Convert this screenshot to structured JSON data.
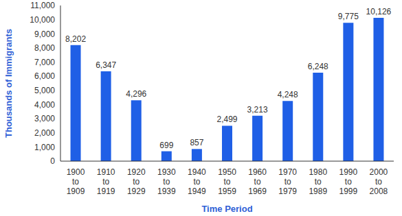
{
  "chart_data": {
    "type": "bar",
    "x_label": "Time Period",
    "y_label": "Thousands of Immigrants",
    "categories": [
      "1900 to 1909",
      "1910 to 1919",
      "1920 to 1929",
      "1930 to 1939",
      "1940 to 1949",
      "1950 to 1959",
      "1960 to 1969",
      "1970 to 1979",
      "1980 to 1989",
      "1990 to 1999",
      "2000 to 2008"
    ],
    "values": [
      8202,
      6347,
      4296,
      699,
      857,
      2499,
      3213,
      4248,
      6248,
      9775,
      10126
    ],
    "value_labels": [
      "8,202",
      "6,347",
      "4,296",
      "699",
      "857",
      "2,499",
      "3,213",
      "4,248",
      "6,248",
      "9,775",
      "10,126"
    ],
    "color": "#1f5fe6",
    "ylim": [
      0,
      11000
    ],
    "yticks": [
      0,
      {
        "value": 1000,
        "label": "1,000"
      },
      {
        "value": 2000,
        "label": "2,000"
      },
      {
        "value": 3000,
        "label": "3,000"
      },
      {
        "value": 4000,
        "label": "4,000"
      },
      {
        "value": 5000,
        "label": "5,000"
      },
      {
        "value": 6000,
        "label": "6,000"
      },
      {
        "value": 7000,
        "label": "7,000"
      },
      {
        "value": 8000,
        "label": "8,000"
      },
      {
        "value": 9000,
        "label": "9,000"
      },
      {
        "value": 10000,
        "label": "10,000"
      },
      {
        "value": 11000,
        "label": "11,000"
      }
    ],
    "grid": false,
    "data_labels": true
  }
}
